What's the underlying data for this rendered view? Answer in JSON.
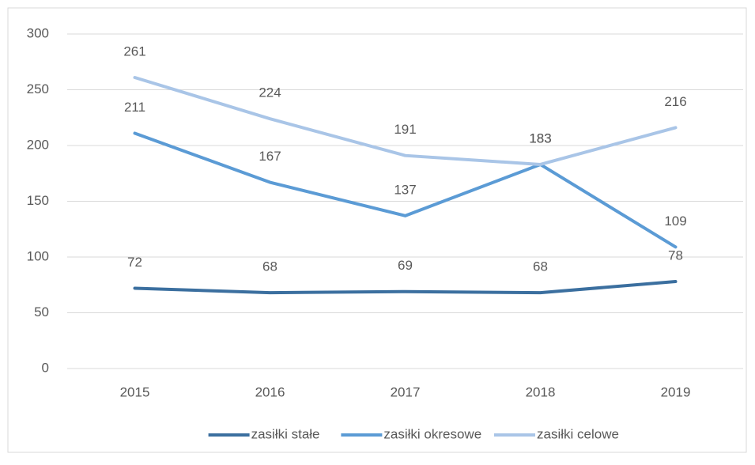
{
  "chart_data": {
    "type": "line",
    "categories": [
      "2015",
      "2016",
      "2017",
      "2018",
      "2019"
    ],
    "series": [
      {
        "name": "zasiłki stałe",
        "color": "#3b6f9f",
        "values": [
          72,
          68,
          69,
          68,
          78
        ]
      },
      {
        "name": "zasiłki okresowe",
        "color": "#5b9bd5",
        "values": [
          211,
          167,
          137,
          183,
          109
        ]
      },
      {
        "name": "zasiłki celowe",
        "color": "#a9c5e7",
        "values": [
          261,
          224,
          191,
          183,
          216
        ]
      }
    ],
    "ylim": [
      0,
      300
    ],
    "yticks": [
      0,
      50,
      100,
      150,
      200,
      250,
      300
    ],
    "grid": true,
    "legend": "bottom"
  }
}
